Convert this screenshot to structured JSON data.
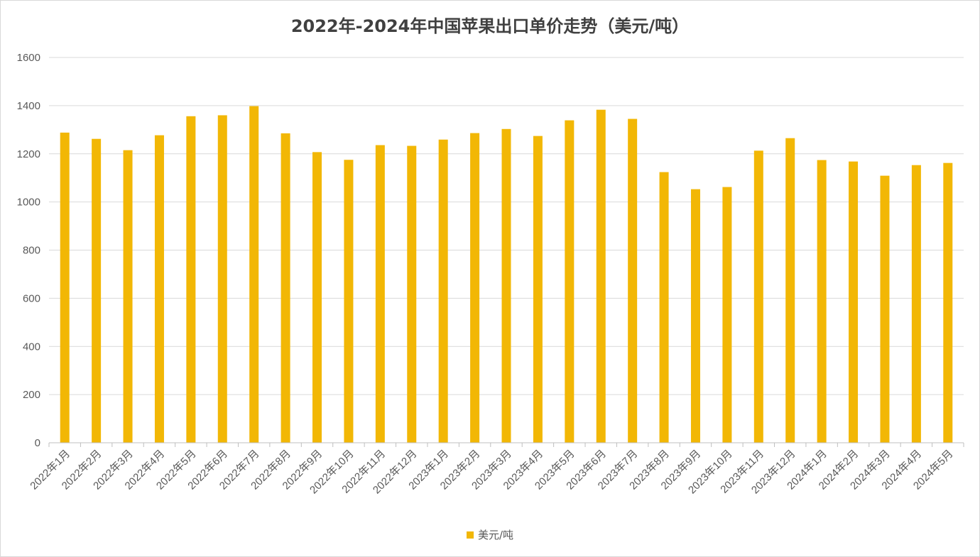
{
  "chart_data": {
    "type": "bar",
    "title": "2022年-2024年中国苹果出口单价走势（美元/吨）",
    "xlabel": "",
    "ylabel": "",
    "ylim": [
      0,
      1600
    ],
    "yticks": [
      0,
      200,
      400,
      600,
      800,
      1000,
      1200,
      1400,
      1600
    ],
    "grid": true,
    "legend_position": "bottom",
    "categories": [
      "2022年1月",
      "2022年2月",
      "2022年3月",
      "2022年4月",
      "2022年5月",
      "2022年6月",
      "2022年7月",
      "2022年8月",
      "2022年9月",
      "2022年10月",
      "2022年11月",
      "2022年12月",
      "2023年1月",
      "2023年2月",
      "2023年3月",
      "2023年4月",
      "2023年5月",
      "2023年6月",
      "2023年7月",
      "2023年8月",
      "2023年9月",
      "2023年10月",
      "2023年11月",
      "2023年12月",
      "2024年1月",
      "2024年2月",
      "2024年3月",
      "2024年4月",
      "2024年5月"
    ],
    "series": [
      {
        "name": "美元/吨",
        "color": "#f2b705",
        "values": [
          1288,
          1262,
          1215,
          1277,
          1356,
          1360,
          1398,
          1285,
          1207,
          1175,
          1236,
          1233,
          1259,
          1286,
          1303,
          1274,
          1339,
          1383,
          1345,
          1124,
          1053,
          1062,
          1213,
          1265,
          1174,
          1168,
          1109,
          1153,
          1162
        ]
      }
    ]
  }
}
